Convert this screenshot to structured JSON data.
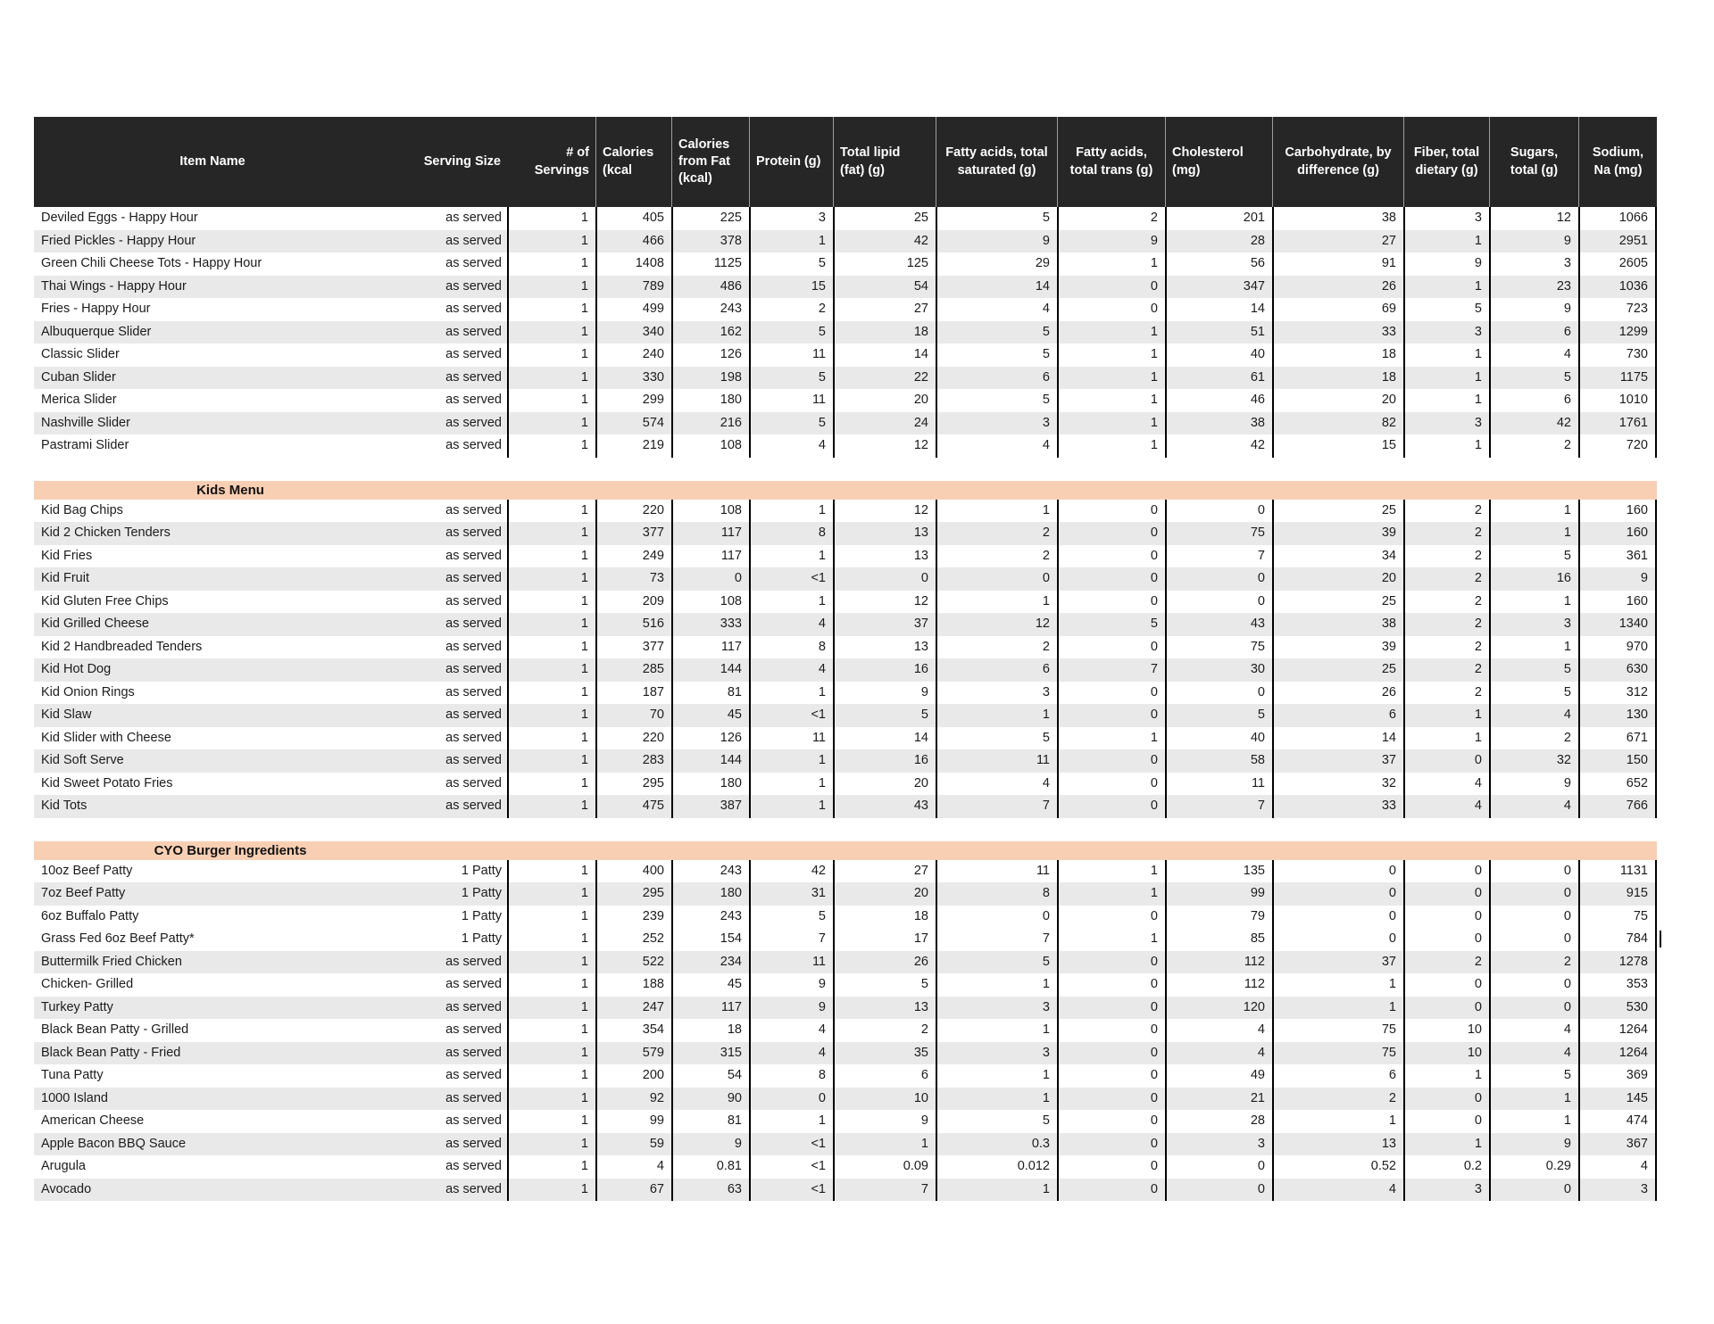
{
  "table": {
    "columns": [
      {
        "label": "Item Name"
      },
      {
        "label": "Serving Size"
      },
      {
        "label": "# of\nServings"
      },
      {
        "label": "Calories\n(kcal"
      },
      {
        "label": "Calories\nfrom Fat\n(kcal)"
      },
      {
        "label": "Protein (g)"
      },
      {
        "label": "Total lipid\n(fat) (g)"
      },
      {
        "label": "Fatty acids, total\nsaturated (g)"
      },
      {
        "label": "Fatty acids,\ntotal trans (g)"
      },
      {
        "label": "Cholesterol\n(mg)"
      },
      {
        "label": "Carbohydrate, by\ndifference (g)"
      },
      {
        "label": "Fiber, total\ndietary (g)"
      },
      {
        "label": "Sugars,\ntotal (g)"
      },
      {
        "label": "Sodium,\nNa (mg)"
      }
    ],
    "sections": [
      {
        "title": "",
        "rows": [
          {
            "name": "Deviled Eggs - Happy Hour",
            "cells": [
              "as served",
              "1",
              "405",
              "225",
              "3",
              "25",
              "5",
              "2",
              "201",
              "38",
              "3",
              "12",
              "1066"
            ],
            "shaded": false
          },
          {
            "name": "Fried Pickles - Happy Hour",
            "cells": [
              "as served",
              "1",
              "466",
              "378",
              "1",
              "42",
              "9",
              "9",
              "28",
              "27",
              "1",
              "9",
              "2951"
            ],
            "shaded": true
          },
          {
            "name": "Green Chili Cheese Tots - Happy Hour",
            "cells": [
              "as served",
              "1",
              "1408",
              "1125",
              "5",
              "125",
              "29",
              "1",
              "56",
              "91",
              "9",
              "3",
              "2605"
            ],
            "shaded": false
          },
          {
            "name": "Thai Wings - Happy Hour",
            "cells": [
              "as served",
              "1",
              "789",
              "486",
              "15",
              "54",
              "14",
              "0",
              "347",
              "26",
              "1",
              "23",
              "1036"
            ],
            "shaded": true
          },
          {
            "name": "Fries - Happy Hour",
            "cells": [
              "as served",
              "1",
              "499",
              "243",
              "2",
              "27",
              "4",
              "0",
              "14",
              "69",
              "5",
              "9",
              "723"
            ],
            "shaded": false
          },
          {
            "name": "Albuquerque Slider",
            "cells": [
              "as served",
              "1",
              "340",
              "162",
              "5",
              "18",
              "5",
              "1",
              "51",
              "33",
              "3",
              "6",
              "1299"
            ],
            "shaded": true
          },
          {
            "name": "Classic Slider",
            "cells": [
              "as served",
              "1",
              "240",
              "126",
              "11",
              "14",
              "5",
              "1",
              "40",
              "18",
              "1",
              "4",
              "730"
            ],
            "shaded": false
          },
          {
            "name": "Cuban Slider",
            "cells": [
              "as served",
              "1",
              "330",
              "198",
              "5",
              "22",
              "6",
              "1",
              "61",
              "18",
              "1",
              "5",
              "1175"
            ],
            "shaded": true
          },
          {
            "name": "Merica Slider",
            "cells": [
              "as served",
              "1",
              "299",
              "180",
              "11",
              "20",
              "5",
              "1",
              "46",
              "20",
              "1",
              "6",
              "1010"
            ],
            "shaded": false
          },
          {
            "name": "Nashville Slider",
            "cells": [
              "as served",
              "1",
              "574",
              "216",
              "5",
              "24",
              "3",
              "1",
              "38",
              "82",
              "3",
              "42",
              "1761"
            ],
            "shaded": true
          },
          {
            "name": "Pastrami Slider",
            "cells": [
              "as served",
              "1",
              "219",
              "108",
              "4",
              "12",
              "4",
              "1",
              "42",
              "15",
              "1",
              "2",
              "720"
            ],
            "shaded": false
          }
        ]
      },
      {
        "title": "Kids Menu",
        "rows": [
          {
            "name": "Kid Bag Chips",
            "cells": [
              "as served",
              "1",
              "220",
              "108",
              "1",
              "12",
              "1",
              "0",
              "0",
              "25",
              "2",
              "1",
              "160"
            ],
            "shaded": false
          },
          {
            "name": "Kid 2 Chicken Tenders",
            "cells": [
              "as served",
              "1",
              "377",
              "117",
              "8",
              "13",
              "2",
              "0",
              "75",
              "39",
              "2",
              "1",
              "160"
            ],
            "shaded": true
          },
          {
            "name": "Kid Fries",
            "cells": [
              "as served",
              "1",
              "249",
              "117",
              "1",
              "13",
              "2",
              "0",
              "7",
              "34",
              "2",
              "5",
              "361"
            ],
            "shaded": false
          },
          {
            "name": "Kid Fruit",
            "cells": [
              "as served",
              "1",
              "73",
              "0",
              "<1",
              "0",
              "0",
              "0",
              "0",
              "20",
              "2",
              "16",
              "9"
            ],
            "shaded": true
          },
          {
            "name": "Kid Gluten Free Chips",
            "cells": [
              "as served",
              "1",
              "209",
              "108",
              "1",
              "12",
              "1",
              "0",
              "0",
              "25",
              "2",
              "1",
              "160"
            ],
            "shaded": false
          },
          {
            "name": "Kid Grilled Cheese",
            "cells": [
              "as served",
              "1",
              "516",
              "333",
              "4",
              "37",
              "12",
              "5",
              "43",
              "38",
              "2",
              "3",
              "1340"
            ],
            "shaded": true
          },
          {
            "name": "Kid 2 Handbreaded Tenders",
            "cells": [
              "as served",
              "1",
              "377",
              "117",
              "8",
              "13",
              "2",
              "0",
              "75",
              "39",
              "2",
              "1",
              "970"
            ],
            "shaded": false
          },
          {
            "name": "Kid Hot Dog",
            "cells": [
              "as served",
              "1",
              "285",
              "144",
              "4",
              "16",
              "6",
              "7",
              "30",
              "25",
              "2",
              "5",
              "630"
            ],
            "shaded": true
          },
          {
            "name": "Kid Onion Rings",
            "cells": [
              "as served",
              "1",
              "187",
              "81",
              "1",
              "9",
              "3",
              "0",
              "0",
              "26",
              "2",
              "5",
              "312"
            ],
            "shaded": false
          },
          {
            "name": "Kid Slaw",
            "cells": [
              "as served",
              "1",
              "70",
              "45",
              "<1",
              "5",
              "1",
              "0",
              "5",
              "6",
              "1",
              "4",
              "130"
            ],
            "shaded": true
          },
          {
            "name": "Kid Slider with Cheese",
            "cells": [
              "as served",
              "1",
              "220",
              "126",
              "11",
              "14",
              "5",
              "1",
              "40",
              "14",
              "1",
              "2",
              "671"
            ],
            "shaded": false
          },
          {
            "name": "Kid Soft Serve",
            "cells": [
              "as served",
              "1",
              "283",
              "144",
              "1",
              "16",
              "11",
              "0",
              "58",
              "37",
              "0",
              "32",
              "150"
            ],
            "shaded": true
          },
          {
            "name": "Kid Sweet Potato Fries",
            "cells": [
              "as served",
              "1",
              "295",
              "180",
              "1",
              "20",
              "4",
              "0",
              "11",
              "32",
              "4",
              "9",
              "652"
            ],
            "shaded": false
          },
          {
            "name": "Kid Tots",
            "cells": [
              "as served",
              "1",
              "475",
              "387",
              "1",
              "43",
              "7",
              "0",
              "7",
              "33",
              "4",
              "4",
              "766"
            ],
            "shaded": true
          }
        ]
      },
      {
        "title": "CYO Burger Ingredients",
        "rows": [
          {
            "name": "10oz Beef Patty",
            "cells": [
              "1 Patty",
              "1",
              "400",
              "243",
              "42",
              "27",
              "11",
              "1",
              "135",
              "0",
              "0",
              "0",
              "1131"
            ],
            "shaded": false
          },
          {
            "name": "7oz Beef Patty",
            "cells": [
              "1 Patty",
              "1",
              "295",
              "180",
              "31",
              "20",
              "8",
              "1",
              "99",
              "0",
              "0",
              "0",
              "915"
            ],
            "shaded": true
          },
          {
            "name": "6oz Buffalo Patty",
            "cells": [
              "1 Patty",
              "1",
              "239",
              "243",
              "5",
              "18",
              "0",
              "0",
              "79",
              "0",
              "0",
              "0",
              "75"
            ],
            "shaded": false
          },
          {
            "name": "Grass Fed 6oz Beef Patty*",
            "cells": [
              "1 Patty",
              "1",
              "252",
              "154",
              "7",
              "17",
              "7",
              "1",
              "85",
              "0",
              "0",
              "0",
              "784"
            ],
            "shaded": false,
            "text_cursor": true
          },
          {
            "name": "Buttermilk Fried Chicken",
            "cells": [
              "as served",
              "1",
              "522",
              "234",
              "11",
              "26",
              "5",
              "0",
              "112",
              "37",
              "2",
              "2",
              "1278"
            ],
            "shaded": true
          },
          {
            "name": "Chicken- Grilled",
            "cells": [
              "as served",
              "1",
              "188",
              "45",
              "9",
              "5",
              "1",
              "0",
              "112",
              "1",
              "0",
              "0",
              "353"
            ],
            "shaded": false
          },
          {
            "name": "Turkey Patty",
            "cells": [
              "as served",
              "1",
              "247",
              "117",
              "9",
              "13",
              "3",
              "0",
              "120",
              "1",
              "0",
              "0",
              "530"
            ],
            "shaded": true
          },
          {
            "name": "Black Bean Patty - Grilled",
            "cells": [
              "as served",
              "1",
              "354",
              "18",
              "4",
              "2",
              "1",
              "0",
              "4",
              "75",
              "10",
              "4",
              "1264"
            ],
            "shaded": false
          },
          {
            "name": "Black Bean Patty - Fried",
            "cells": [
              "as served",
              "1",
              "579",
              "315",
              "4",
              "35",
              "3",
              "0",
              "4",
              "75",
              "10",
              "4",
              "1264"
            ],
            "shaded": true
          },
          {
            "name": "Tuna Patty",
            "cells": [
              "as served",
              "1",
              "200",
              "54",
              "8",
              "6",
              "1",
              "0",
              "49",
              "6",
              "1",
              "5",
              "369"
            ],
            "shaded": false
          },
          {
            "name": "1000 Island",
            "cells": [
              "as served",
              "1",
              "92",
              "90",
              "0",
              "10",
              "1",
              "0",
              "21",
              "2",
              "0",
              "1",
              "145"
            ],
            "shaded": true
          },
          {
            "name": "American Cheese",
            "cells": [
              "as served",
              "1",
              "99",
              "81",
              "1",
              "9",
              "5",
              "0",
              "28",
              "1",
              "0",
              "1",
              "474"
            ],
            "shaded": false
          },
          {
            "name": "Apple Bacon BBQ Sauce",
            "cells": [
              "as served",
              "1",
              "59",
              "9",
              "<1",
              "1",
              "0.3",
              "0",
              "3",
              "13",
              "1",
              "9",
              "367"
            ],
            "shaded": true
          },
          {
            "name": "Arugula",
            "cells": [
              "as served",
              "1",
              "4",
              "0.81",
              "<1",
              "0.09",
              "0.012",
              "0",
              "0",
              "0.52",
              "0.2",
              "0.29",
              "4"
            ],
            "shaded": false
          },
          {
            "name": "Avocado",
            "cells": [
              "as served",
              "1",
              "67",
              "63",
              "<1",
              "7",
              "1",
              "0",
              "0",
              "4",
              "3",
              "0",
              "3"
            ],
            "shaded": true
          }
        ]
      }
    ]
  }
}
